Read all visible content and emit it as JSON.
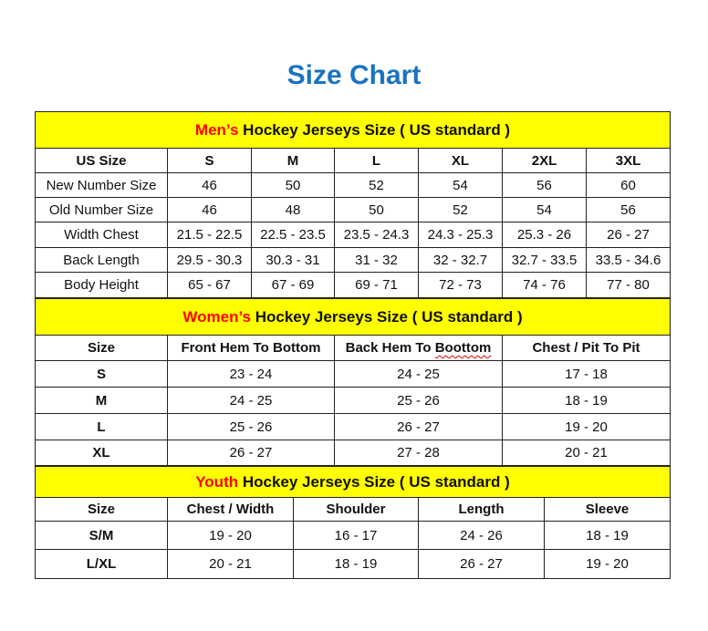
{
  "title": "Size Chart",
  "colors": {
    "title": "#1a73c1",
    "section_bg": "#ffff00",
    "section_highlight": "#ff0000"
  },
  "men": {
    "heading_highlight": "Men’s",
    "heading_rest": " Hockey Jerseys Size ( US standard )",
    "columns": [
      "US Size",
      "S",
      "M",
      "L",
      "XL",
      "2XL",
      "3XL"
    ],
    "rows": [
      [
        "New Number Size",
        "46",
        "50",
        "52",
        "54",
        "56",
        "60"
      ],
      [
        "Old Number Size",
        "46",
        "48",
        "50",
        "52",
        "54",
        "56"
      ],
      [
        "Width Chest",
        "21.5 - 22.5",
        "22.5 - 23.5",
        "23.5 - 24.3",
        "24.3 - 25.3",
        "25.3 - 26",
        "26 - 27"
      ],
      [
        "Back Length",
        "29.5 - 30.3",
        "30.3 - 31",
        "31 - 32",
        "32 - 32.7",
        "32.7 - 33.5",
        "33.5 - 34.6"
      ],
      [
        "Body Height",
        "65 - 67",
        "67 - 69",
        "69 - 71",
        "72 - 73",
        "74 - 76",
        "77 - 80"
      ]
    ]
  },
  "women": {
    "heading_highlight": "Women’s",
    "heading_rest": " Hockey Jerseys Size ( US standard )",
    "columns": [
      "Size",
      "Front Hem To Bottom",
      "Back Hem To Boottom",
      "Chest / Pit To Pit"
    ],
    "rows": [
      [
        "S",
        "23 - 24",
        "24 - 25",
        "17 - 18"
      ],
      [
        "M",
        "24 - 25",
        "25 - 26",
        "18 - 19"
      ],
      [
        "L",
        "25 - 26",
        "26 - 27",
        "19 - 20"
      ],
      [
        "XL",
        "26 - 27",
        "27 - 28",
        "20 - 21"
      ]
    ]
  },
  "youth": {
    "heading_highlight": "Youth",
    "heading_rest": " Hockey Jerseys Size ( US standard )",
    "columns": [
      "Size",
      "Chest / Width",
      "Shoulder",
      "Length",
      "Sleeve"
    ],
    "rows": [
      [
        "S/M",
        "19 - 20",
        "16 - 17",
        "24 - 26",
        "18 - 19"
      ],
      [
        "L/XL",
        "20 - 21",
        "18 - 19",
        "26 - 27",
        "19 - 20"
      ]
    ]
  }
}
